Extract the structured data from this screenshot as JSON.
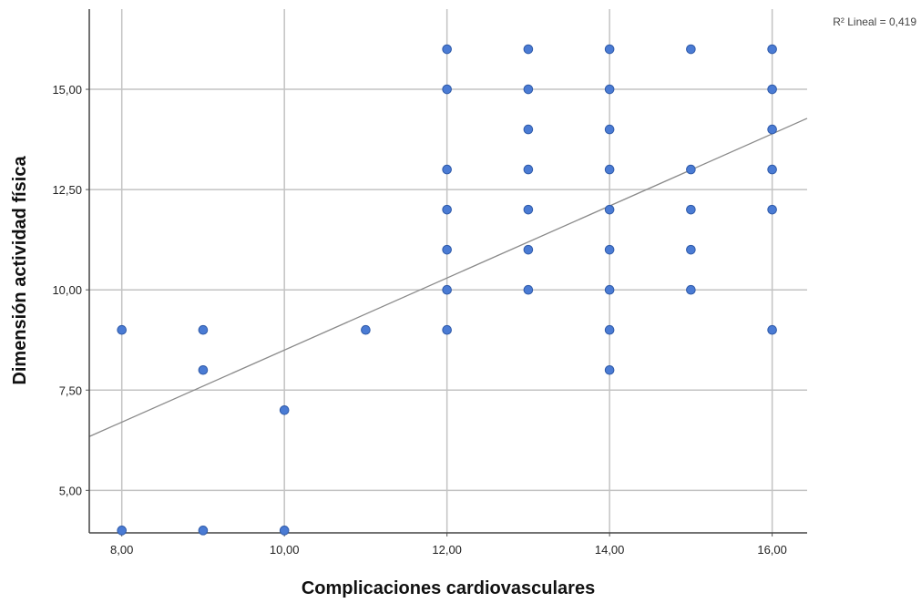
{
  "chart_data": {
    "type": "scatter",
    "title": "",
    "xlabel": "Complicaciones cardiovasculares",
    "ylabel": "Dimensión actividad física",
    "xlim": [
      7.6,
      16.43
    ],
    "ylim": [
      3.94,
      17.0
    ],
    "x_ticks": [
      8,
      10,
      12,
      14,
      16
    ],
    "x_tick_labels": [
      "8,00",
      "10,00",
      "12,00",
      "14,00",
      "16,00"
    ],
    "y_ticks": [
      5,
      7.5,
      10,
      12.5,
      15
    ],
    "y_tick_labels": [
      "5,00",
      "7,50",
      "10,00",
      "12,50",
      "15,00"
    ],
    "grid": true,
    "annotation": "R² Lineal = 0,419",
    "fit_line": {
      "slope": 0.8985,
      "intercept": -0.4871
    },
    "marker_color": "#4a7bd4",
    "points": [
      {
        "x": 8,
        "y": 9
      },
      {
        "x": 8,
        "y": 4
      },
      {
        "x": 9,
        "y": 9
      },
      {
        "x": 9,
        "y": 8
      },
      {
        "x": 9,
        "y": 4
      },
      {
        "x": 10,
        "y": 7
      },
      {
        "x": 10,
        "y": 4
      },
      {
        "x": 11,
        "y": 9
      },
      {
        "x": 12,
        "y": 16
      },
      {
        "x": 12,
        "y": 15
      },
      {
        "x": 12,
        "y": 13
      },
      {
        "x": 12,
        "y": 12
      },
      {
        "x": 12,
        "y": 11
      },
      {
        "x": 12,
        "y": 10
      },
      {
        "x": 12,
        "y": 9
      },
      {
        "x": 13,
        "y": 16
      },
      {
        "x": 13,
        "y": 15
      },
      {
        "x": 13,
        "y": 14
      },
      {
        "x": 13,
        "y": 13
      },
      {
        "x": 13,
        "y": 12
      },
      {
        "x": 13,
        "y": 11
      },
      {
        "x": 13,
        "y": 10
      },
      {
        "x": 14,
        "y": 16
      },
      {
        "x": 14,
        "y": 15
      },
      {
        "x": 14,
        "y": 14
      },
      {
        "x": 14,
        "y": 13
      },
      {
        "x": 14,
        "y": 12
      },
      {
        "x": 14,
        "y": 11
      },
      {
        "x": 14,
        "y": 10
      },
      {
        "x": 14,
        "y": 9
      },
      {
        "x": 14,
        "y": 8
      },
      {
        "x": 15,
        "y": 16
      },
      {
        "x": 15,
        "y": 13
      },
      {
        "x": 15,
        "y": 12
      },
      {
        "x": 15,
        "y": 11
      },
      {
        "x": 15,
        "y": 10
      },
      {
        "x": 16,
        "y": 16
      },
      {
        "x": 16,
        "y": 15
      },
      {
        "x": 16,
        "y": 14
      },
      {
        "x": 16,
        "y": 13
      },
      {
        "x": 16,
        "y": 12
      },
      {
        "x": 16,
        "y": 9
      }
    ]
  }
}
